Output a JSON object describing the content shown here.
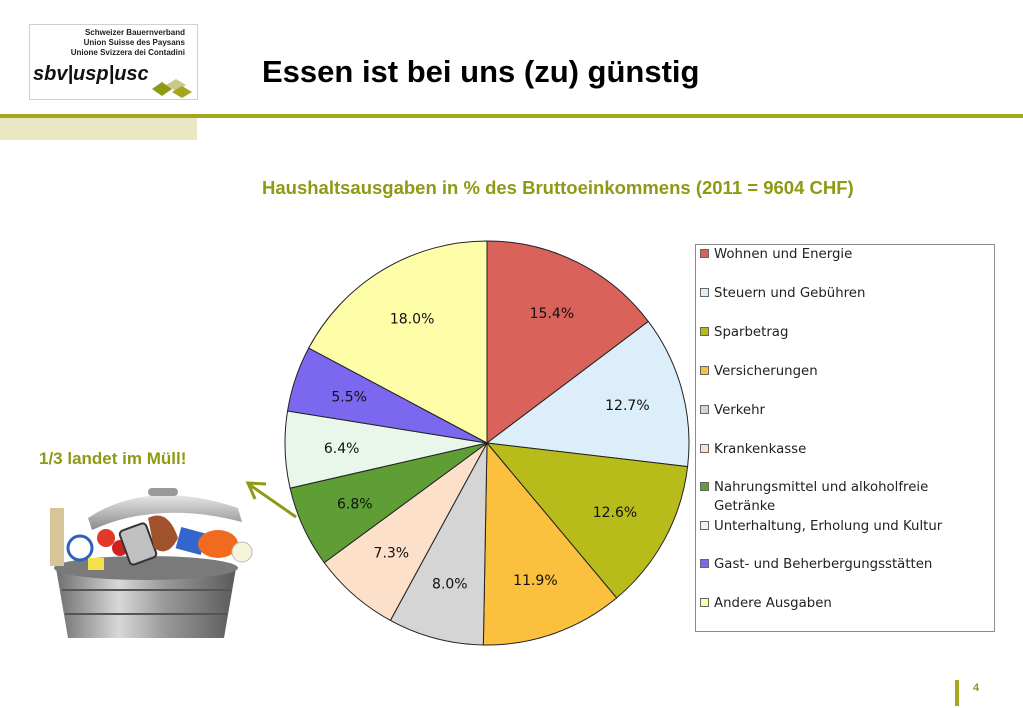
{
  "logo": {
    "lines": [
      "Schweizer Bauernverband",
      "Union Suisse des Paysans",
      "Unione Svizzera dei Contadini"
    ],
    "wordmark": "sbv|usp|usc"
  },
  "header": {
    "title": "Essen ist bei uns (zu) günstig"
  },
  "annotation": {
    "text": "1/3 landet im Müll!"
  },
  "page": {
    "number": "4"
  },
  "colors": {
    "accent": "#a6a51e",
    "accent_text": "#8e9a14"
  },
  "chart_data": {
    "type": "pie",
    "title": "Haushaltsausgaben in % des Bruttoeinkommens (2011 = 9604 CHF)",
    "legend_position": "right",
    "slices": [
      {
        "name": "Wohnen und Energie",
        "value": 15.4,
        "label": "15.4%",
        "color": "#d9625a"
      },
      {
        "name": "Steuern und Gebühren",
        "value": 12.7,
        "label": "12.7%",
        "color": "#dceef9"
      },
      {
        "name": "Sparbetrag",
        "value": 12.6,
        "label": "12.6%",
        "color": "#b8bc1a"
      },
      {
        "name": "Versicherungen",
        "value": 11.9,
        "label": "11.9%",
        "color": "#fbc03d"
      },
      {
        "name": "Verkehr",
        "value": 8.0,
        "label": "8.0%",
        "color": "#d5d5d5"
      },
      {
        "name": "Krankenkasse",
        "value": 7.3,
        "label": "7.3%",
        "color": "#fde0ca"
      },
      {
        "name": "Nahrungsmittel und alkoholfreie Getränke",
        "value": 6.8,
        "label": "6.8%",
        "color": "#5e9e34"
      },
      {
        "name": "Unterhaltung, Erholung und Kultur",
        "value": 6.4,
        "label": "6.4%",
        "color": "#e8f7ea"
      },
      {
        "name": "Gast- und Beherbergungsstätten",
        "value": 5.5,
        "label": "5.5%",
        "color": "#7b68ee"
      },
      {
        "name": "Andere Ausgaben",
        "value": 18.0,
        "label": "18.0%",
        "color": "#fefda8"
      }
    ]
  }
}
